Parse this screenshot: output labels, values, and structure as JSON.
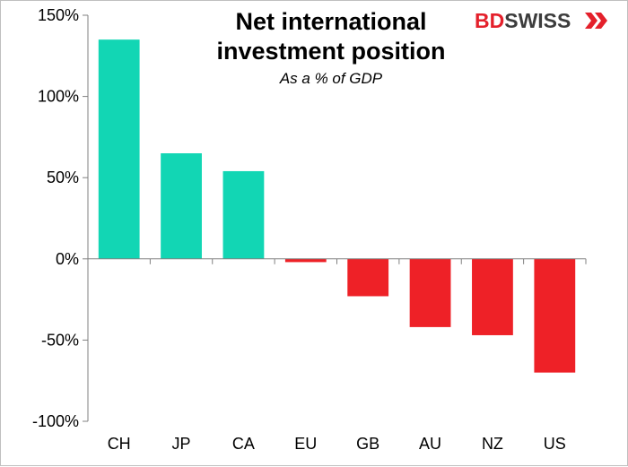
{
  "chart_data": {
    "type": "bar",
    "title_line1": "Net international",
    "title_line2": "investment position",
    "subtitle": "As a % of GDP",
    "categories": [
      "CH",
      "JP",
      "CA",
      "EU",
      "GB",
      "AU",
      "NZ",
      "US"
    ],
    "values": [
      135,
      65,
      54,
      -2,
      -23,
      -42,
      -47,
      -70
    ],
    "ylim": [
      -100,
      150
    ],
    "yticks": [
      150,
      100,
      50,
      0,
      -50,
      -100
    ],
    "ytick_labels": [
      "150%",
      "100%",
      "50%",
      "0%",
      "-50%",
      "-100%"
    ],
    "positive_color": "#12d6b4",
    "negative_color": "#ee2127",
    "grid": false,
    "legend": "none"
  },
  "brand": {
    "logo_part1": "BD",
    "logo_part2": "SWISS",
    "logo_color_part1": "#e4202b",
    "logo_color_part2": "#3c3c3c",
    "logo_icon": "arrow-mark-icon"
  }
}
